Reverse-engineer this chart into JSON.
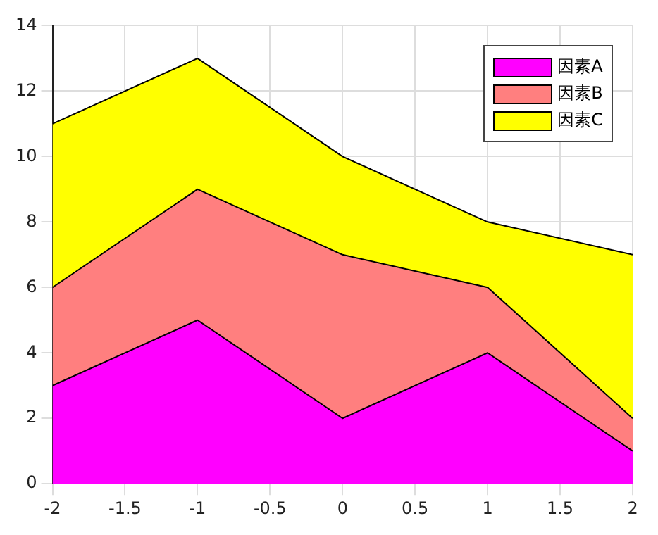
{
  "chart_data": {
    "type": "area",
    "stacked": true,
    "x": [
      -2,
      -1,
      0,
      1,
      2
    ],
    "series": [
      {
        "name": "因素A",
        "color": "#ff00ff",
        "values": [
          3,
          5,
          2,
          4,
          1
        ]
      },
      {
        "name": "因素B",
        "color": "#ff7f7f",
        "values": [
          3,
          4,
          5,
          2,
          1
        ]
      },
      {
        "name": "因素C",
        "color": "#ffff00",
        "values": [
          5,
          4,
          3,
          2,
          5
        ]
      }
    ],
    "xlim": [
      -2,
      2
    ],
    "xticks": [
      -2,
      -1.5,
      -1,
      -0.5,
      0,
      0.5,
      1,
      1.5,
      2
    ],
    "ylim": [
      0,
      14
    ],
    "yticks": [
      0,
      2,
      4,
      6,
      8,
      10,
      12,
      14
    ],
    "grid": true,
    "legend": "top right"
  }
}
